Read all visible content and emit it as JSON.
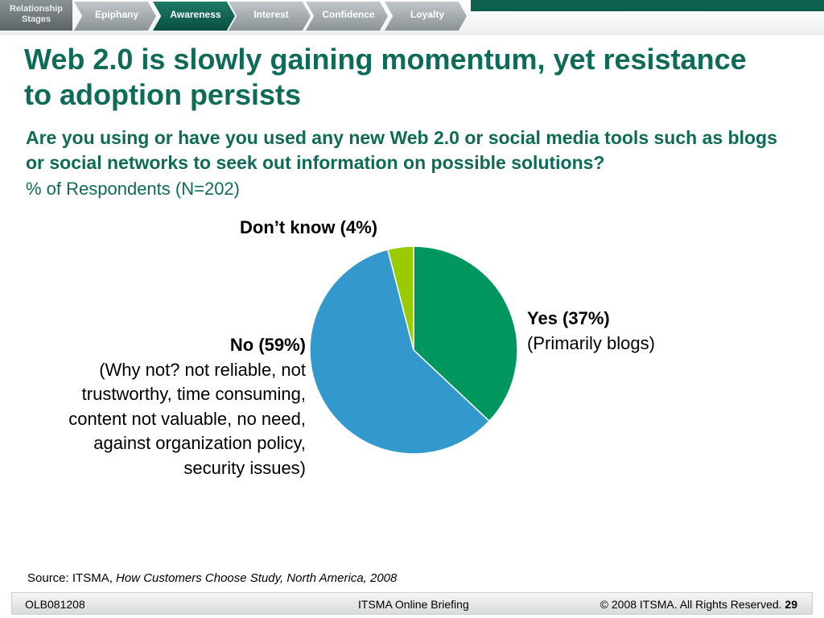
{
  "nav": {
    "first_label": "Relationship Stages",
    "tabs": [
      {
        "label": "Epiphany",
        "active": false
      },
      {
        "label": "Awareness",
        "active": true
      },
      {
        "label": "Interest",
        "active": false
      },
      {
        "label": "Confidence",
        "active": false
      },
      {
        "label": "Loyalty",
        "active": false
      }
    ]
  },
  "slide": {
    "title": "Web 2.0 is slowly gaining momentum, yet resistance to adoption persists",
    "question": "Are you using or have you used any new Web 2.0 or social media tools such as blogs or social networks to seek out information on possible solutions?",
    "respondents": "% of Respondents (N=202)"
  },
  "chart_data": {
    "type": "pie",
    "slices": [
      {
        "label": "Yes (37%)",
        "note": "(Primarily blogs)",
        "value": 37,
        "color": "#00975e"
      },
      {
        "label": "No (59%)",
        "note": "(Why not? not reliable, not trustworthy, time consuming, content not valuable, no need, against organization policy, security issues)",
        "value": 59,
        "color": "#3399cc"
      },
      {
        "label": "Don’t know (4%)",
        "note": "",
        "value": 4,
        "color": "#99cc00"
      }
    ]
  },
  "source": {
    "prefix": "Source: ITSMA,",
    "italic": "How Customers Choose Study, North America, 2008"
  },
  "footer": {
    "code": "OLB081208",
    "center": "ITSMA Online Briefing",
    "copyright": "© 2008 ITSMA. All Rights Reserved.",
    "page": "29"
  },
  "colors": {
    "accent": "#0d6b57",
    "nav_active": "#0b4f41",
    "nav_inactive": "#8a9296"
  }
}
